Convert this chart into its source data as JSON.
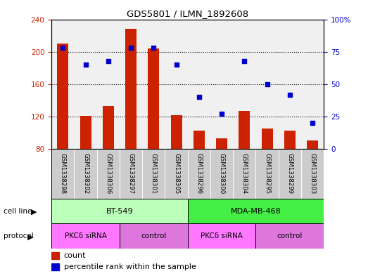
{
  "title": "GDS5801 / ILMN_1892608",
  "samples": [
    "GSM1338298",
    "GSM1338302",
    "GSM1338306",
    "GSM1338297",
    "GSM1338301",
    "GSM1338305",
    "GSM1338296",
    "GSM1338300",
    "GSM1338304",
    "GSM1338295",
    "GSM1338299",
    "GSM1338303"
  ],
  "counts": [
    210,
    121,
    133,
    228,
    204,
    122,
    103,
    93,
    127,
    105,
    103,
    91
  ],
  "percentiles": [
    78,
    65,
    68,
    78,
    78,
    65,
    40,
    27,
    68,
    50,
    42,
    20
  ],
  "ylim_left": [
    80,
    240
  ],
  "ylim_right": [
    0,
    100
  ],
  "yticks_left": [
    80,
    120,
    160,
    200,
    240
  ],
  "yticks_right": [
    0,
    25,
    50,
    75,
    100
  ],
  "bar_color": "#cc2200",
  "dot_color": "#0000cc",
  "cell_lines": [
    {
      "label": "BT-549",
      "start": 0,
      "end": 6,
      "color": "#bbffbb"
    },
    {
      "label": "MDA-MB-468",
      "start": 6,
      "end": 12,
      "color": "#44ee44"
    }
  ],
  "protocols": [
    {
      "label": "PKCδ siRNA",
      "start": 0,
      "end": 3,
      "color": "#ff77ff"
    },
    {
      "label": "control",
      "start": 3,
      "end": 6,
      "color": "#dd77dd"
    },
    {
      "label": "PKCδ siRNA",
      "start": 6,
      "end": 9,
      "color": "#ff77ff"
    },
    {
      "label": "control",
      "start": 9,
      "end": 12,
      "color": "#dd77dd"
    }
  ],
  "legend_count_label": "count",
  "legend_pct_label": "percentile rank within the sample",
  "plot_bg": "#f0f0f0",
  "sample_row_color": "#cccccc",
  "sample_row_border": "#999999"
}
